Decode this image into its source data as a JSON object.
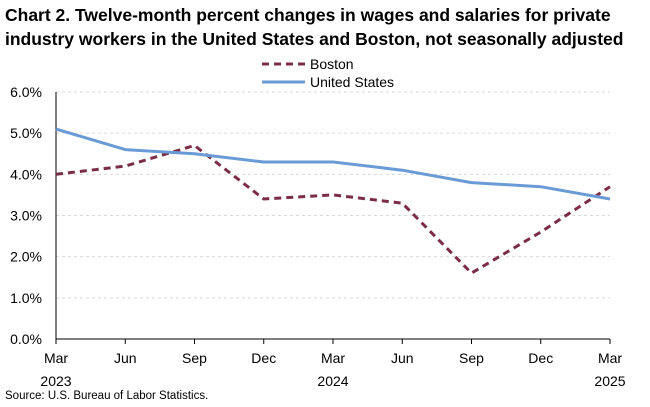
{
  "title_line1": "Chart 2. Twelve-month percent changes in wages and salaries for private",
  "title_line2": "industry workers in the United States and Boston, not seasonally adjusted",
  "source": "Source: U.S. Bureau of Labor Statistics.",
  "chart_data": {
    "type": "line",
    "title": "Chart 2. Twelve-month percent changes in wages and salaries for private industry workers in the United States and Boston, not seasonally adjusted",
    "xlabel": "",
    "ylabel": "",
    "ylim": [
      0,
      6
    ],
    "yticks": [
      0,
      1,
      2,
      3,
      4,
      5,
      6
    ],
    "ytick_labels": [
      "0.0%",
      "1.0%",
      "2.0%",
      "3.0%",
      "4.0%",
      "5.0%",
      "6.0%"
    ],
    "categories": [
      "Mar 2023",
      "Jun",
      "Sep",
      "Dec",
      "Mar 2024",
      "Jun",
      "Sep",
      "Dec",
      "Mar 2025"
    ],
    "xtick_month": [
      "Mar",
      "Jun",
      "Sep",
      "Dec",
      "Mar",
      "Jun",
      "Sep",
      "Dec",
      "Mar"
    ],
    "xtick_year": [
      "2023",
      "",
      "",
      "",
      "2024",
      "",
      "",
      "",
      "2025"
    ],
    "grid": "horizontal dashed",
    "legend_position": "top-center",
    "series": [
      {
        "name": "Boston",
        "color": "#7b2d47",
        "style": "dashed",
        "values": [
          4.0,
          4.2,
          4.7,
          3.4,
          3.5,
          3.3,
          1.6,
          2.6,
          3.7
        ]
      },
      {
        "name": "United States",
        "color": "#6b9bd6",
        "style": "solid",
        "values": [
          5.1,
          4.6,
          4.5,
          4.3,
          4.3,
          4.1,
          3.8,
          3.7,
          3.4
        ]
      }
    ]
  }
}
